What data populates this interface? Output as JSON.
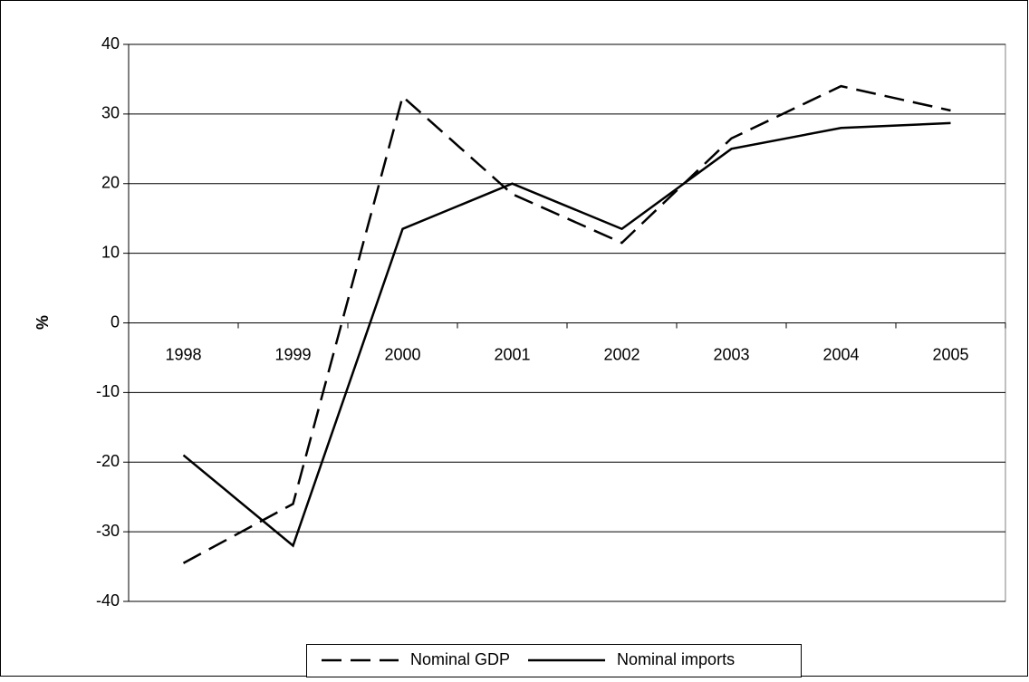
{
  "chart_data": {
    "type": "line",
    "categories": [
      "1998",
      "1999",
      "2000",
      "2001",
      "2002",
      "2003",
      "2004",
      "2005"
    ],
    "series": [
      {
        "name": "Nominal GDP",
        "color": "#000000",
        "dash": "dashed",
        "values": [
          -34.5,
          -26,
          32.5,
          18.5,
          11.5,
          26.5,
          34,
          30.5
        ]
      },
      {
        "name": "Nominal imports",
        "color": "#000000",
        "dash": "solid",
        "values": [
          -19,
          -32,
          13.5,
          20,
          13.5,
          25,
          28,
          28.7
        ]
      }
    ],
    "y_label": "%",
    "ylim": [
      -40,
      40
    ],
    "yticks": [
      -40,
      -30,
      -20,
      -10,
      0,
      10,
      20,
      30,
      40
    ],
    "grid": true,
    "legend": "bottom"
  }
}
